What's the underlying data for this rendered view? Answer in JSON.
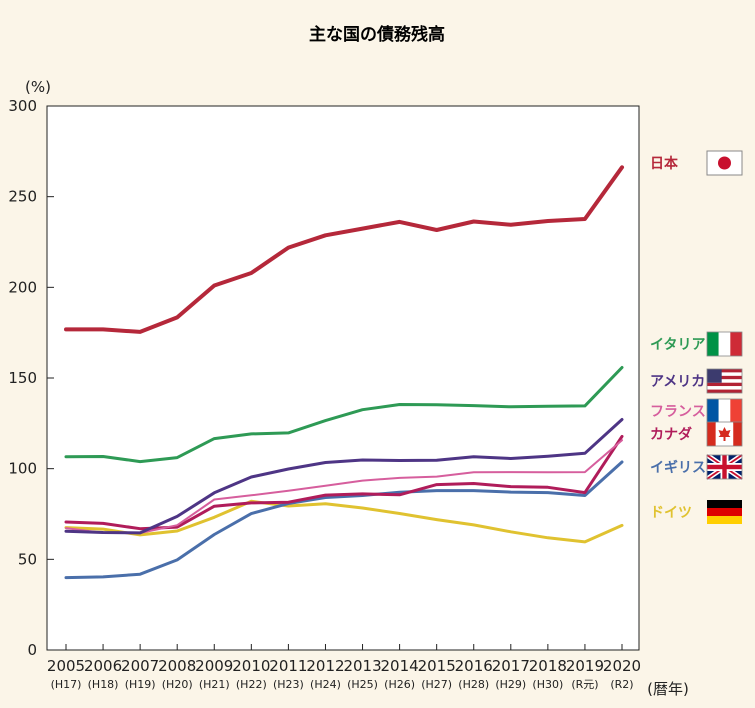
{
  "chart_data": {
    "type": "line",
    "title": "主な国の債務残高",
    "y_unit": "(%)",
    "x_unit": "(暦年)",
    "ylim": [
      0,
      300
    ],
    "yticks": [
      0,
      50,
      100,
      150,
      200,
      250,
      300
    ],
    "grid": false,
    "legend_position": "right",
    "x": [
      "2005",
      "2006",
      "2007",
      "2008",
      "2009",
      "2010",
      "2011",
      "2012",
      "2013",
      "2014",
      "2015",
      "2016",
      "2017",
      "2018",
      "2019",
      "2020"
    ],
    "x_sub": [
      "(H17)",
      "(H18)",
      "(H19)",
      "(H20)",
      "(H21)",
      "(H22)",
      "(H23)",
      "(H24)",
      "(H25)",
      "(H26)",
      "(H27)",
      "(H28)",
      "(H29)",
      "(H30)",
      "(R元)",
      "(R2)"
    ],
    "series": [
      {
        "name": "日本",
        "color": "#b5283a",
        "flag": "japan-flag",
        "width": 4,
        "values": [
          176.8,
          176.8,
          175.4,
          183.4,
          201.0,
          207.9,
          221.9,
          228.7,
          232.4,
          236.1,
          231.6,
          236.3,
          234.5,
          236.6,
          237.7,
          266.2
        ]
      },
      {
        "name": "イタリア",
        "color": "#2e9a55",
        "flag": "italy-flag",
        "width": 3,
        "values": [
          106.6,
          106.7,
          103.9,
          106.1,
          116.6,
          119.2,
          119.7,
          126.5,
          132.5,
          135.4,
          135.3,
          134.8,
          134.1,
          134.4,
          134.6,
          155.8
        ]
      },
      {
        "name": "アメリカ",
        "color": "#4e3585",
        "flag": "usa-flag",
        "width": 3,
        "values": [
          65.5,
          64.8,
          64.6,
          73.7,
          86.7,
          95.4,
          99.8,
          103.4,
          104.8,
          104.5,
          104.6,
          106.6,
          105.6,
          106.9,
          108.5,
          127.1
        ]
      },
      {
        "name": "フランス",
        "color": "#d65e9d",
        "flag": "france-flag",
        "width": 2,
        "values": [
          67.2,
          64.6,
          64.5,
          68.8,
          83.0,
          85.3,
          87.8,
          90.6,
          93.4,
          94.9,
          95.6,
          98.0,
          98.1,
          98.0,
          98.1,
          115.7
        ]
      },
      {
        "name": "カナダ",
        "color": "#b01c5a",
        "flag": "canada-flag",
        "width": 3,
        "values": [
          70.6,
          69.8,
          66.9,
          67.8,
          79.3,
          81.1,
          81.5,
          85.4,
          86.1,
          85.6,
          91.2,
          91.8,
          90.1,
          89.7,
          86.8,
          117.8
        ]
      },
      {
        "name": "イギリス",
        "color": "#4a6faa",
        "flag": "uk-flag",
        "width": 3,
        "values": [
          39.9,
          40.3,
          41.8,
          49.7,
          63.7,
          75.2,
          80.8,
          84.1,
          85.2,
          87.0,
          87.9,
          87.9,
          87.1,
          86.8,
          85.2,
          103.7
        ]
      },
      {
        "name": "ドイツ",
        "color": "#e0c230",
        "flag": "germany-flag",
        "width": 3,
        "values": [
          67.5,
          66.7,
          63.5,
          65.6,
          73.2,
          82.0,
          79.4,
          80.7,
          78.3,
          75.3,
          71.9,
          69.0,
          65.2,
          61.9,
          59.6,
          68.7
        ]
      }
    ]
  }
}
